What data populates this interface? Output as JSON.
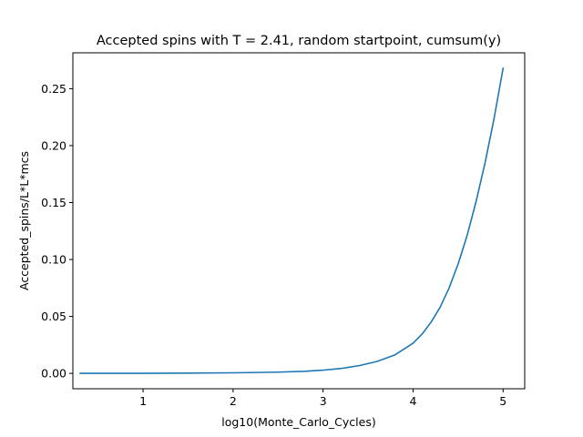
{
  "chart_data": {
    "type": "line",
    "title": "Accepted spins with T = 2.41, random startpoint, cumsum(y)",
    "xlabel": "log10(Monte_Carlo_Cycles)",
    "ylabel": "Accepted_spins/L*L*mcs",
    "xlim": [
      0.22,
      5.24
    ],
    "ylim": [
      -0.0135,
      0.2815
    ],
    "xticks": [
      1,
      2,
      3,
      4,
      5
    ],
    "xtick_labels": [
      "1",
      "2",
      "3",
      "4",
      "5"
    ],
    "yticks": [
      0.0,
      0.05,
      0.1,
      0.15,
      0.2,
      0.25
    ],
    "ytick_labels": [
      "0.00",
      "0.05",
      "0.10",
      "0.15",
      "0.20",
      "0.25"
    ],
    "grid": false,
    "series": [
      {
        "color": "#1f77b4",
        "x": [
          0.3,
          0.5,
          1.0,
          1.5,
          2.0,
          2.5,
          2.8,
          3.0,
          3.2,
          3.4,
          3.6,
          3.8,
          4.0,
          4.1,
          4.2,
          4.3,
          4.4,
          4.5,
          4.6,
          4.7,
          4.8,
          4.9,
          5.0
        ],
        "y": [
          0.0,
          0.0,
          0.0,
          0.0002,
          0.0005,
          0.0011,
          0.0018,
          0.0028,
          0.0043,
          0.0068,
          0.0105,
          0.0163,
          0.0265,
          0.0345,
          0.045,
          0.058,
          0.075,
          0.096,
          0.121,
          0.151,
          0.185,
          0.224,
          0.268
        ]
      }
    ]
  }
}
